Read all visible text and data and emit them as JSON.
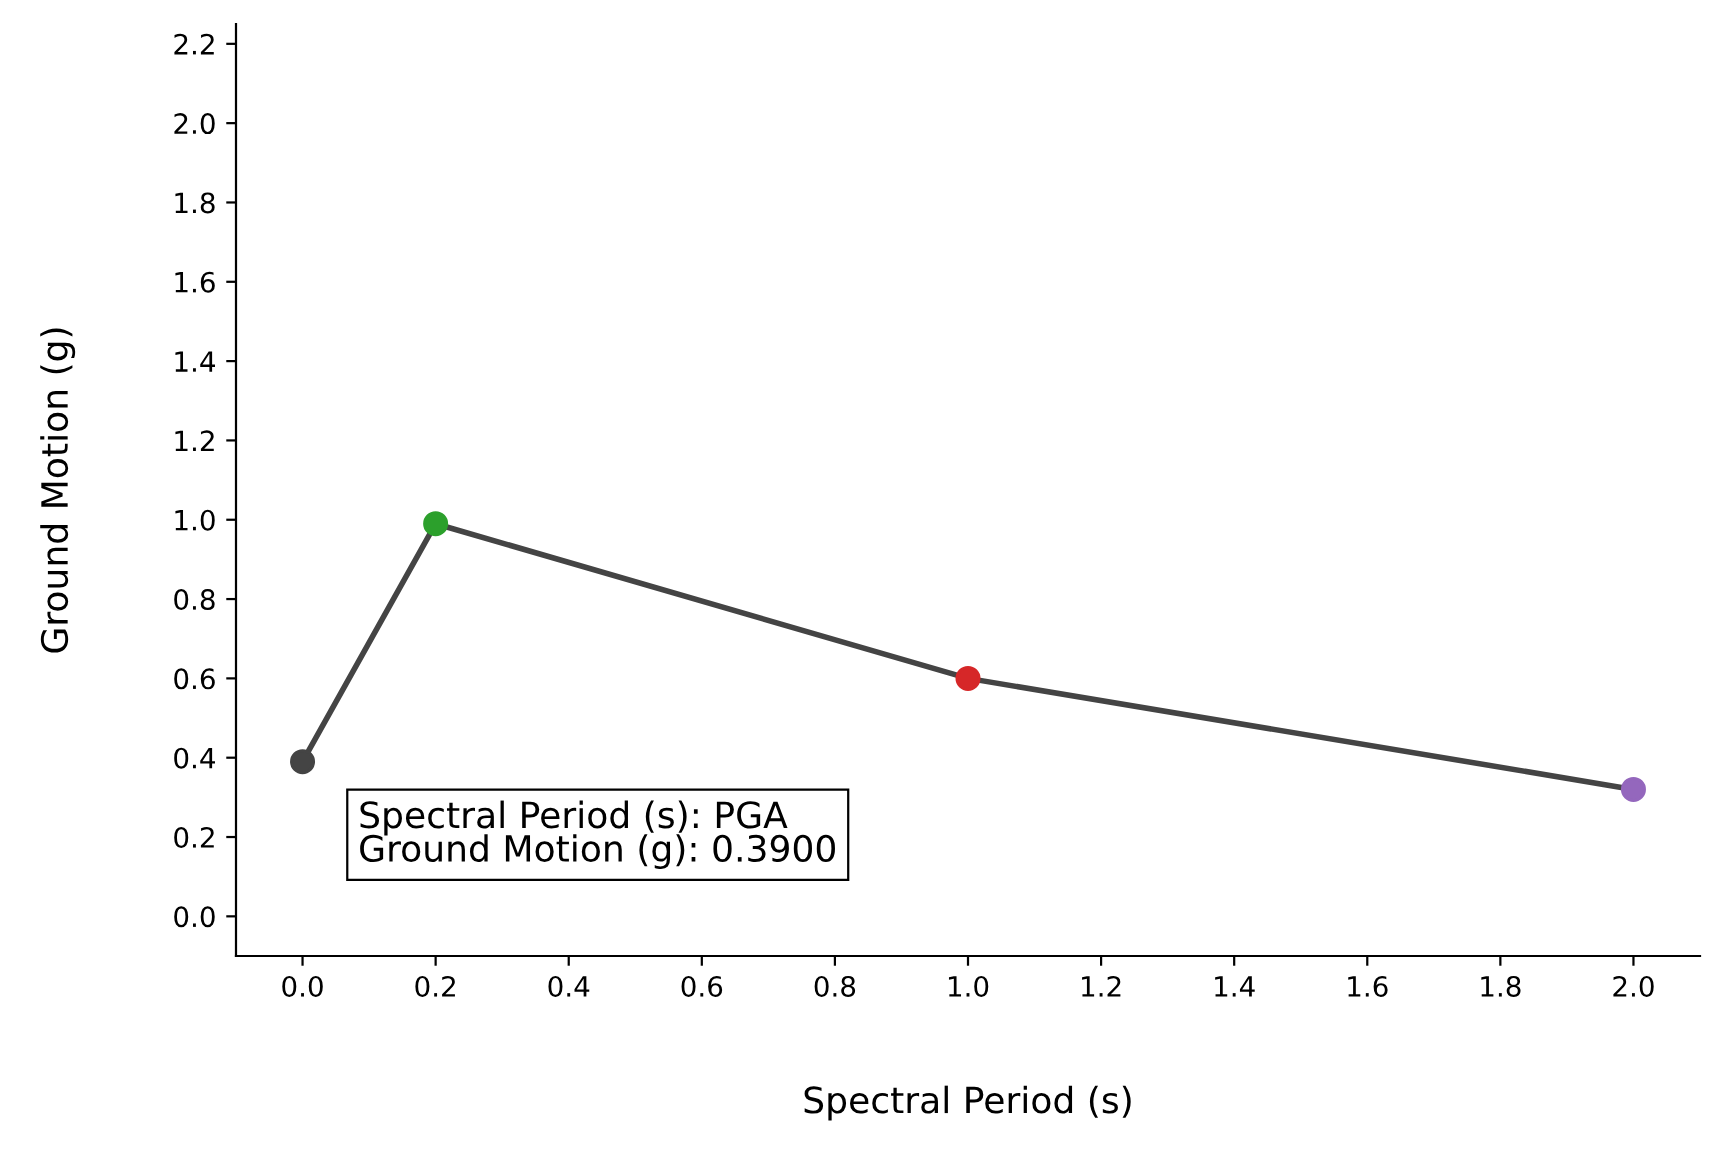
{
  "chart_data": {
    "type": "line",
    "xlabel": "Spectral Period (s)",
    "ylabel": "Ground Motion (g)",
    "x": [
      0.0,
      0.2,
      1.0,
      2.0
    ],
    "series": [
      {
        "color": "#444444",
        "colors": [
          "#444444",
          "#2ca02c",
          "#d62728",
          "#9467bd"
        ],
        "values": [
          0.39,
          0.99,
          0.6,
          0.32
        ]
      }
    ],
    "marker": "circle",
    "xlim": [
      -0.1,
      2.1
    ],
    "xticks": [
      {
        "value": 0,
        "label": "0.0"
      },
      0.2,
      0.4,
      0.6,
      0.8,
      {
        "value": 1,
        "label": "1.0"
      },
      1.2,
      1.4,
      1.6,
      1.8,
      {
        "value": 2,
        "label": "2.0"
      }
    ],
    "ylim": [
      -0.1,
      2.25
    ],
    "yticks": [
      {
        "value": 0,
        "label": "0.0"
      },
      0.2,
      0.4,
      0.6,
      0.8,
      {
        "value": 1,
        "label": "1.0"
      },
      1.2,
      1.4,
      1.6,
      1.8,
      {
        "value": 2,
        "label": "2.0"
      },
      2.2
    ],
    "grid": false,
    "legend": false,
    "annotations": [
      {
        "text": "Spectral Period (s): PGA\nGround Motion (g): 0.3900",
        "x": 0.0,
        "y": 0.39
      }
    ]
  }
}
